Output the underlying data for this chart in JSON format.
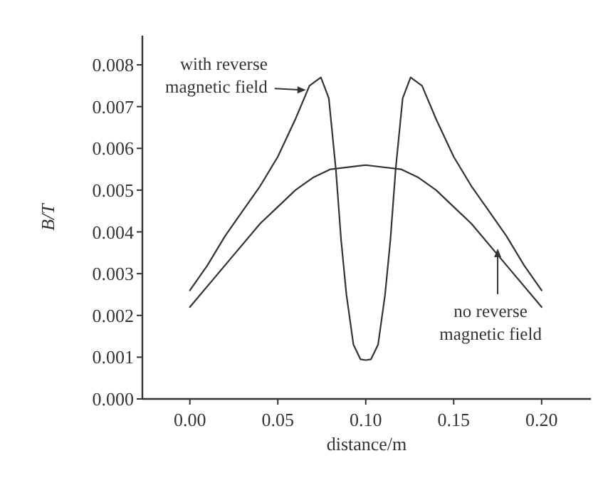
{
  "chart_data": {
    "type": "line",
    "xlabel": "distance/m",
    "ylabel": "B/T",
    "xlim": [
      -0.027,
      0.228
    ],
    "ylim": [
      0,
      0.0087
    ],
    "xticks": [
      {
        "value": 0,
        "label": "0.00"
      },
      {
        "value": 0.05,
        "label": "0.05"
      },
      {
        "value": 0.1,
        "label": "0.10"
      },
      {
        "value": 0.15,
        "label": "0.15"
      },
      {
        "value": 0.2,
        "label": "0.20"
      }
    ],
    "yticks": [
      {
        "value": 0,
        "label": "0.000"
      },
      {
        "value": 0.001,
        "label": "0.001"
      },
      {
        "value": 0.002,
        "label": "0.002"
      },
      {
        "value": 0.003,
        "label": "0.003"
      },
      {
        "value": 0.004,
        "label": "0.004"
      },
      {
        "value": 0.005,
        "label": "0.005"
      },
      {
        "value": 0.006,
        "label": "0.006"
      },
      {
        "value": 0.007,
        "label": "0.007"
      },
      {
        "value": 0.008,
        "label": "0.008"
      }
    ],
    "grid": false,
    "marker": "none",
    "line_style": "solid",
    "series": [
      {
        "color": "#333333",
        "x": [
          0,
          0.01,
          0.02,
          0.03,
          0.04,
          0.05,
          0.06,
          0.068,
          0.0745,
          0.079,
          0.083,
          0.086,
          0.089,
          0.093,
          0.097,
          0.1,
          0.103,
          0.107,
          0.111,
          0.114,
          0.117,
          0.121,
          0.1255,
          0.132,
          0.14,
          0.15,
          0.16,
          0.17,
          0.18,
          0.19,
          0.2
        ],
        "values": [
          0.0026,
          0.0032,
          0.0039,
          0.0045,
          0.0051,
          0.0058,
          0.0067,
          0.0075,
          0.0077,
          0.0072,
          0.0055,
          0.0038,
          0.0025,
          0.0013,
          0.00095,
          0.00093,
          0.00095,
          0.0013,
          0.0025,
          0.0038,
          0.0055,
          0.0072,
          0.0077,
          0.0075,
          0.0067,
          0.0058,
          0.0051,
          0.0045,
          0.0039,
          0.0032,
          0.0026
        ]
      },
      {
        "color": "#333333",
        "x": [
          0,
          0.02,
          0.04,
          0.05,
          0.06,
          0.07,
          0.08,
          0.1,
          0.12,
          0.13,
          0.14,
          0.15,
          0.16,
          0.18,
          0.2
        ],
        "values": [
          0.0022,
          0.0032,
          0.0042,
          0.0046,
          0.005,
          0.0053,
          0.0055,
          0.0056,
          0.0055,
          0.0053,
          0.005,
          0.0046,
          0.0042,
          0.0032,
          0.0022
        ]
      }
    ],
    "annotations": [
      {
        "text": "with reverse magnetic field",
        "x": 0.066,
        "y": 0.0074
      },
      {
        "text": "no reverse magnetic field",
        "x": 0.175,
        "y": 0.0036
      }
    ]
  }
}
